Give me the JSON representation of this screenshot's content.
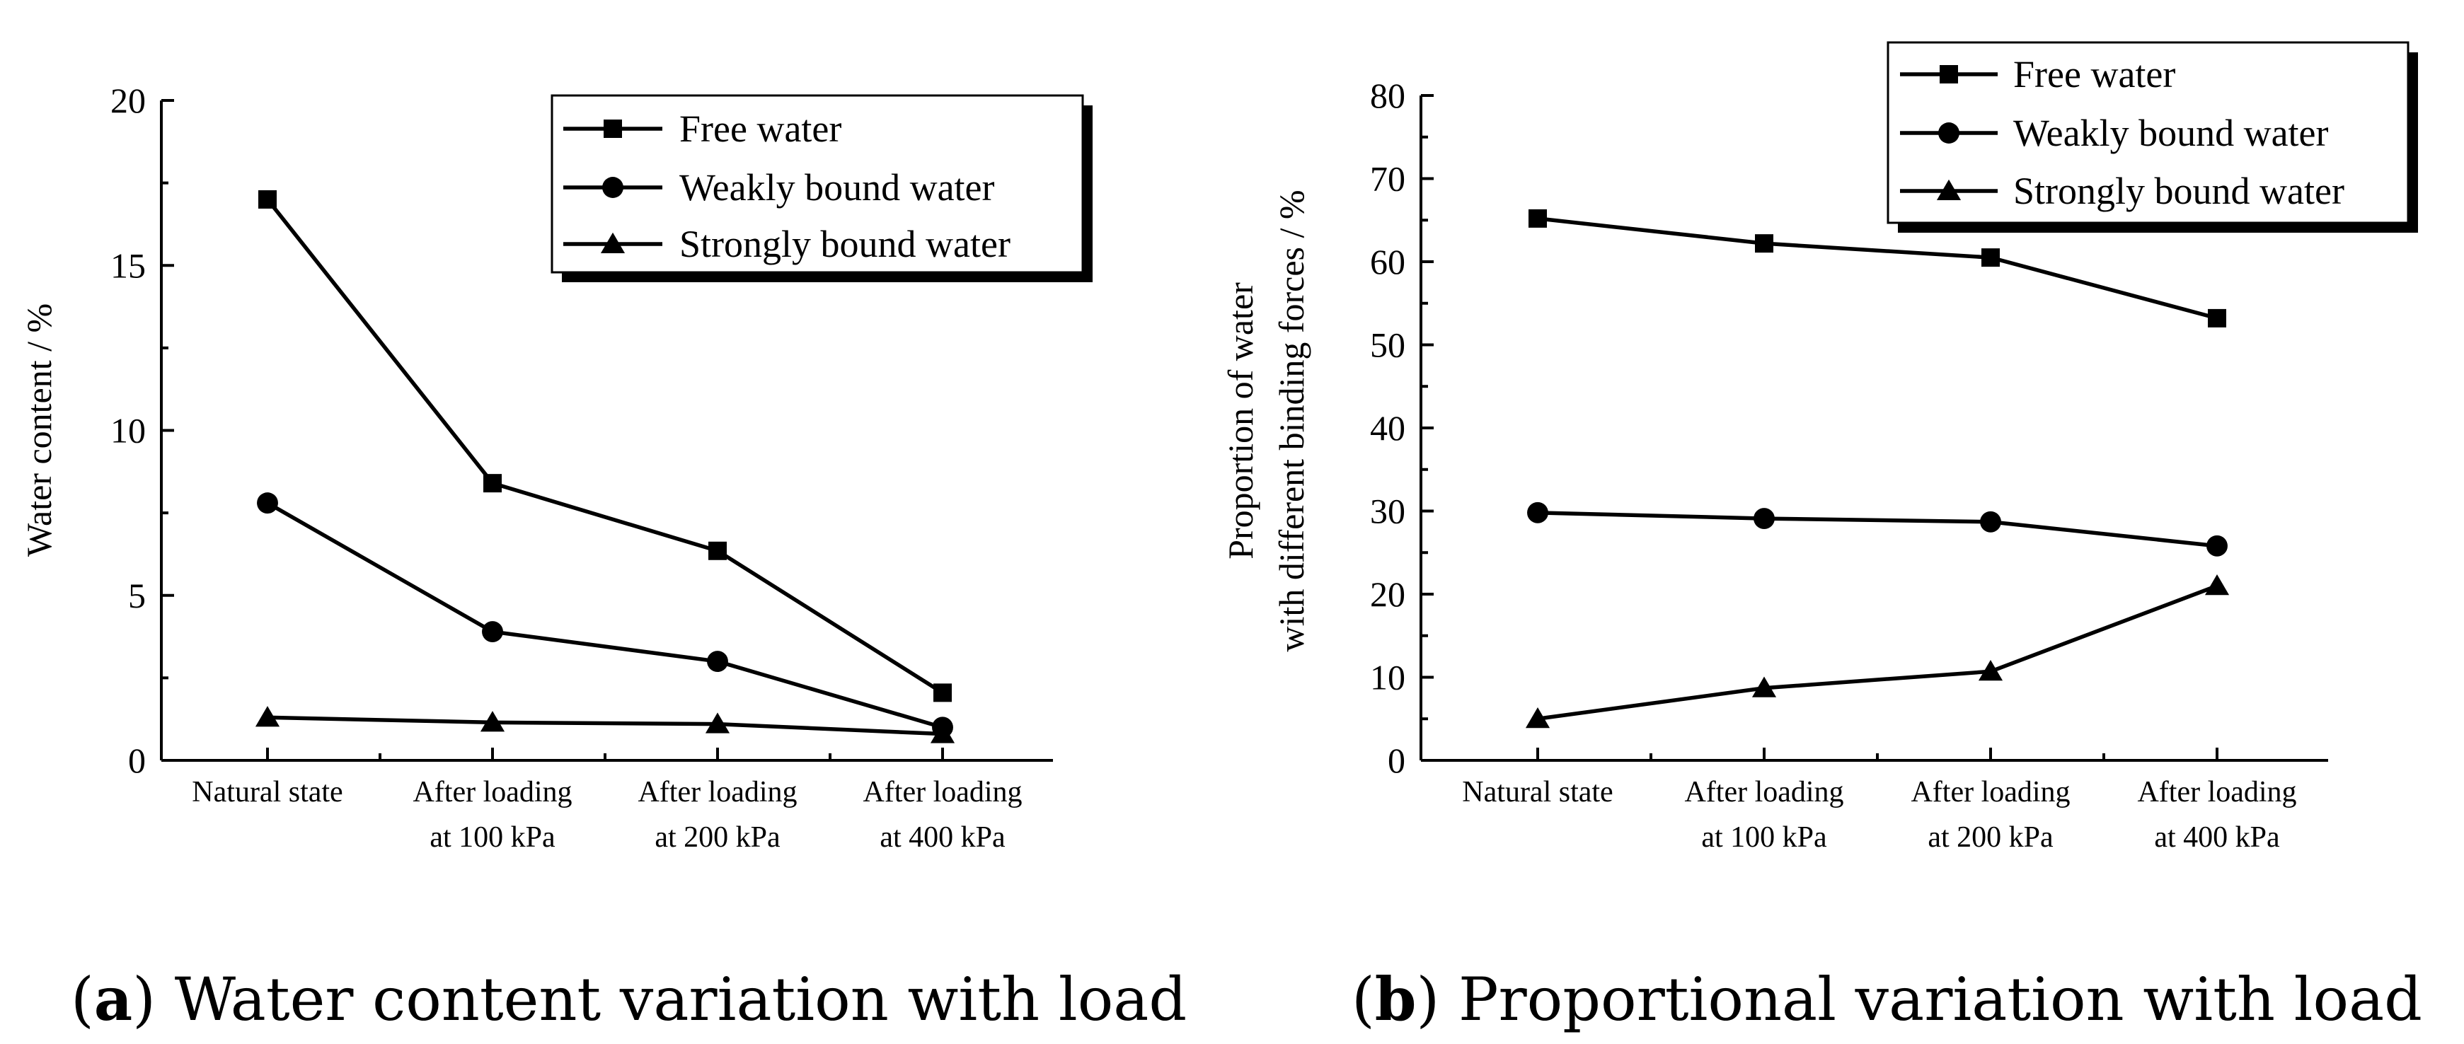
{
  "chart_data": [
    {
      "type": "line",
      "panel": "a",
      "caption_letter": "a",
      "caption_text": "Water content variation with load",
      "categories": [
        [
          "Natural state"
        ],
        [
          "After loading",
          "at 100 kPa"
        ],
        [
          "After loading",
          "at 200 kPa"
        ],
        [
          "After loading",
          "at 400 kPa"
        ]
      ],
      "ylabel": "Water content / %",
      "ylim": [
        0,
        20
      ],
      "yticks": [
        "0",
        "5",
        "10",
        "15",
        "20"
      ],
      "ytick_values": [
        0,
        5,
        10,
        15,
        20
      ],
      "legend_position": "top-right",
      "series": [
        {
          "name": "Free water",
          "marker": "square",
          "values": [
            17.0,
            8.4,
            6.35,
            2.05
          ]
        },
        {
          "name": "Weakly bound water",
          "marker": "circle",
          "values": [
            7.8,
            3.9,
            3.0,
            1.0
          ]
        },
        {
          "name": "Strongly bound water",
          "marker": "triangle",
          "values": [
            1.3,
            1.15,
            1.1,
            0.8
          ]
        }
      ]
    },
    {
      "type": "line",
      "panel": "b",
      "caption_letter": "b",
      "caption_text": "Proportional variation with load",
      "categories": [
        [
          "Natural state"
        ],
        [
          "After loading",
          "at 100 kPa"
        ],
        [
          "After loading",
          "at 200 kPa"
        ],
        [
          "After loading",
          "at 400 kPa"
        ]
      ],
      "ylabel": [
        "Proportion of water",
        "with different binding forces / %"
      ],
      "ylim": [
        0,
        80
      ],
      "yticks": [
        "0",
        "10",
        "20",
        "30",
        "40",
        "50",
        "60",
        "70",
        "80"
      ],
      "ytick_values": [
        0,
        10,
        20,
        30,
        40,
        50,
        60,
        70,
        80
      ],
      "legend_position": "top-right",
      "series": [
        {
          "name": "Free water",
          "marker": "square",
          "values": [
            65.2,
            62.2,
            60.5,
            53.2
          ]
        },
        {
          "name": "Weakly bound water",
          "marker": "circle",
          "values": [
            29.8,
            29.1,
            28.7,
            25.8
          ]
        },
        {
          "name": "Strongly bound water",
          "marker": "triangle",
          "values": [
            5.0,
            8.7,
            10.7,
            21.0
          ]
        }
      ]
    }
  ]
}
